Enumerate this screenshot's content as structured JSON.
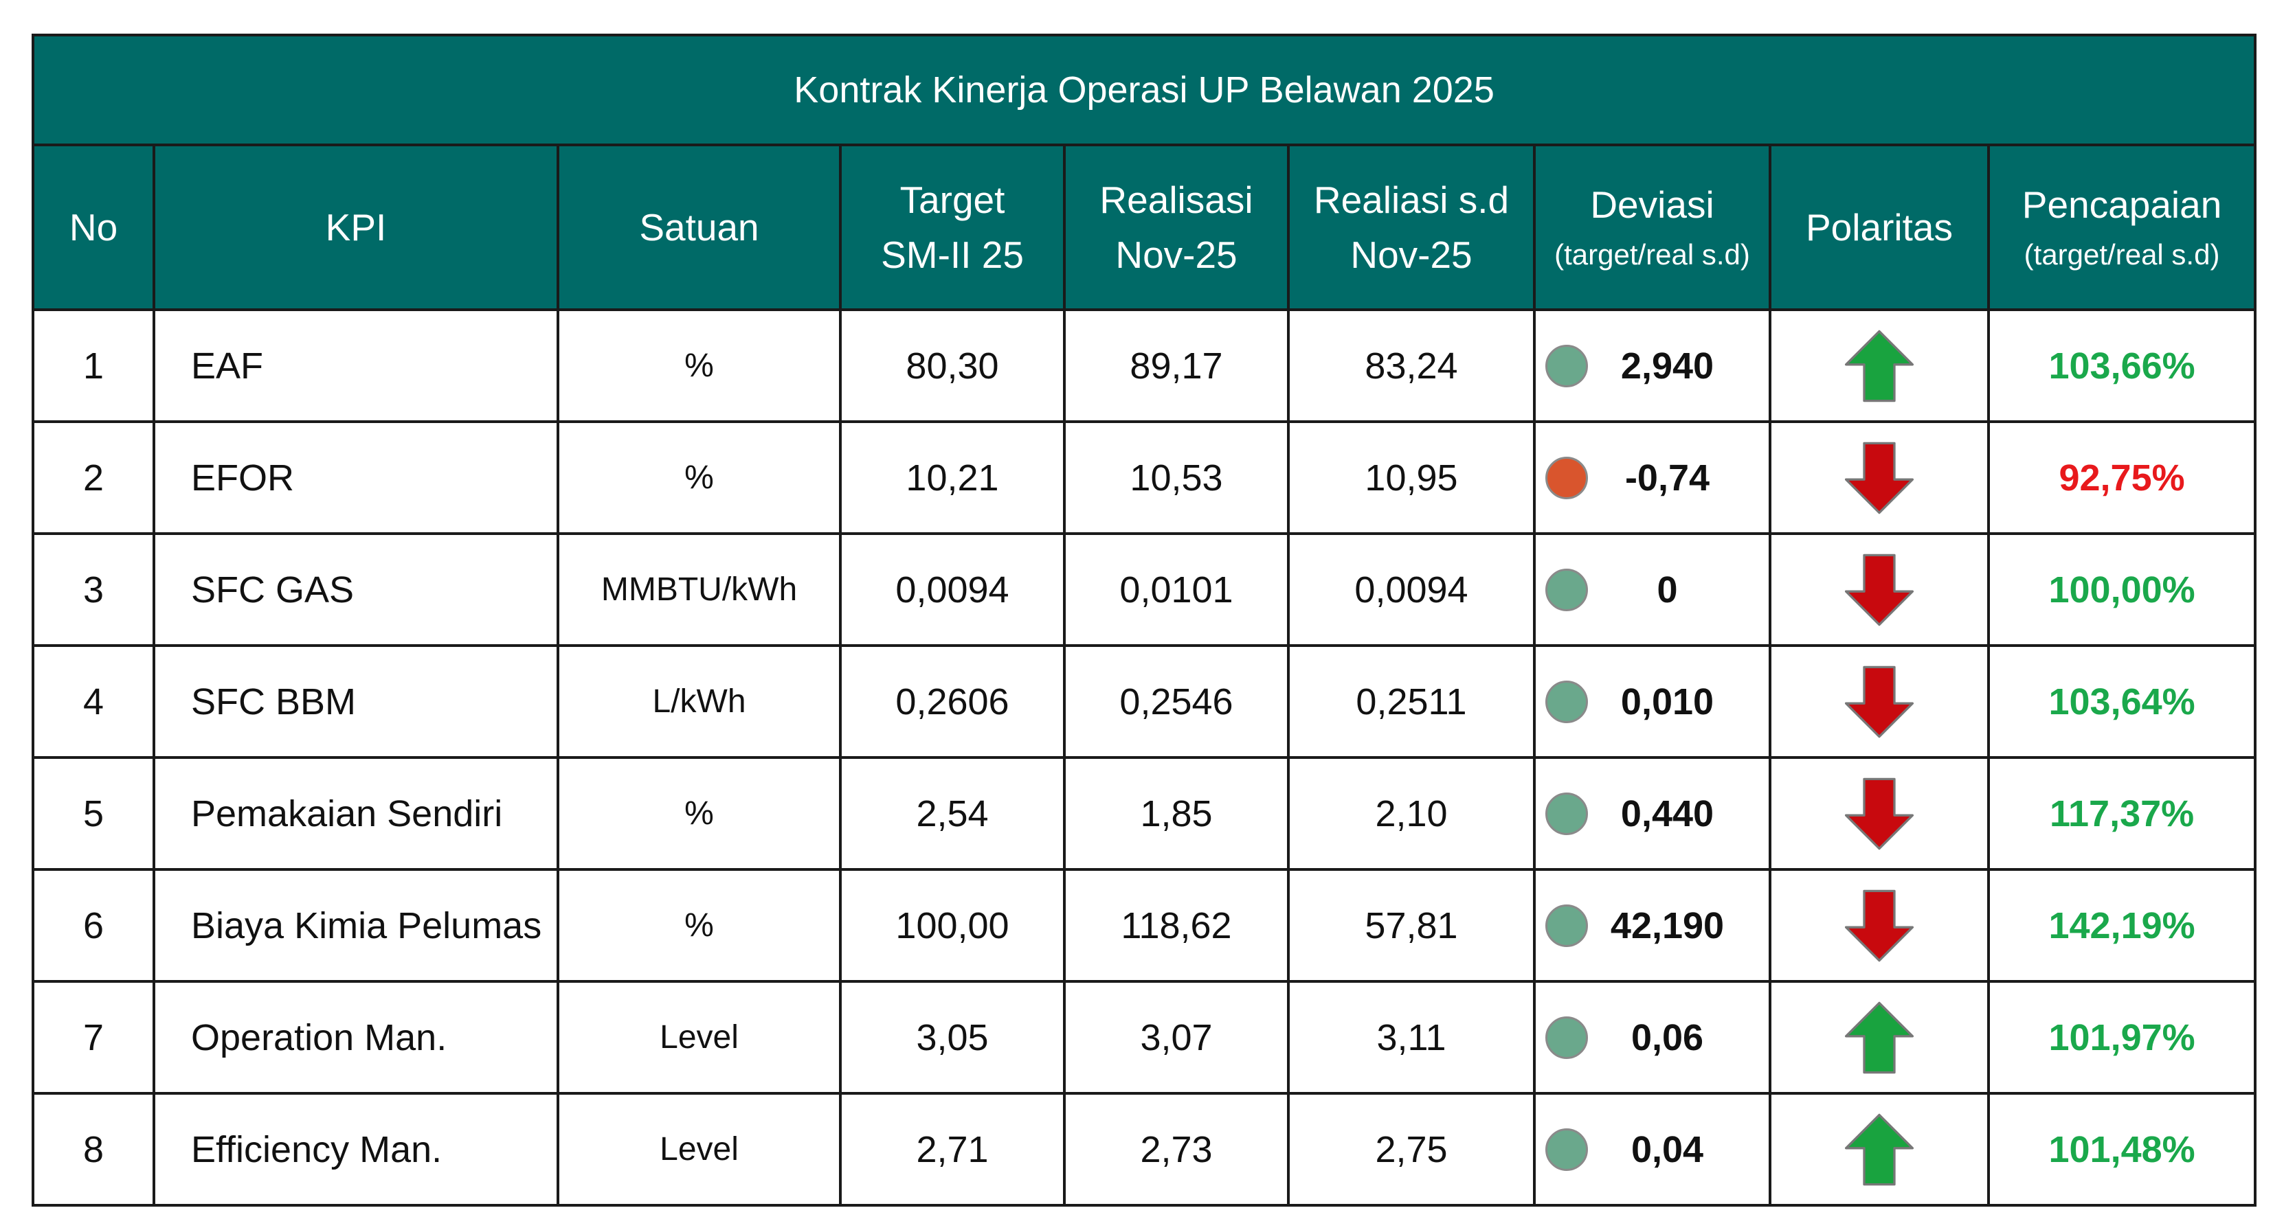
{
  "chart_data": {
    "type": "table",
    "title": "Kontrak Kinerja Operasi UP Belawan 2025",
    "columns": [
      {
        "main": "No",
        "sub": ""
      },
      {
        "main": "KPI",
        "sub": ""
      },
      {
        "main": "Satuan",
        "sub": ""
      },
      {
        "main": "Target",
        "main2": "SM-II 25",
        "sub": ""
      },
      {
        "main": "Realisasi",
        "main2": "Nov-25",
        "sub": ""
      },
      {
        "main": "Realiasi s.d",
        "main2": "Nov-25",
        "sub": ""
      },
      {
        "main": "Deviasi",
        "sub": "(target/real s.d)"
      },
      {
        "main": "Polaritas",
        "sub": ""
      },
      {
        "main": "Pencapaian",
        "sub": "(target/real s.d)"
      }
    ],
    "rows": [
      {
        "no": "1",
        "kpi": "EAF",
        "satuan": "%",
        "target": "80,30",
        "realisasi": "89,17",
        "realisasi_sd": "83,24",
        "deviasi": "2,940",
        "status": "good",
        "polaritas": "up",
        "pencapaian": "103,66%"
      },
      {
        "no": "2",
        "kpi": "EFOR",
        "satuan": "%",
        "target": "10,21",
        "realisasi": "10,53",
        "realisasi_sd": "10,95",
        "deviasi": "-0,74",
        "status": "bad",
        "polaritas": "down",
        "pencapaian": "92,75%"
      },
      {
        "no": "3",
        "kpi": "SFC GAS",
        "satuan": "MMBTU/kWh",
        "target": "0,0094",
        "realisasi": "0,0101",
        "realisasi_sd": "0,0094",
        "deviasi": "0",
        "status": "good",
        "polaritas": "down",
        "pencapaian": "100,00%"
      },
      {
        "no": "4",
        "kpi": "SFC BBM",
        "satuan": "L/kWh",
        "target": "0,2606",
        "realisasi": "0,2546",
        "realisasi_sd": "0,2511",
        "deviasi": "0,010",
        "status": "good",
        "polaritas": "down",
        "pencapaian": "103,64%"
      },
      {
        "no": "5",
        "kpi": "Pemakaian Sendiri",
        "satuan": "%",
        "target": "2,54",
        "realisasi": "1,85",
        "realisasi_sd": "2,10",
        "deviasi": "0,440",
        "status": "good",
        "polaritas": "down",
        "pencapaian": "117,37%"
      },
      {
        "no": "6",
        "kpi": "Biaya Kimia Pelumas",
        "satuan": "%",
        "target": "100,00",
        "realisasi": "118,62",
        "realisasi_sd": "57,81",
        "deviasi": "42,190",
        "status": "good",
        "polaritas": "down",
        "pencapaian": "142,19%"
      },
      {
        "no": "7",
        "kpi": "Operation Man.",
        "satuan": "Level",
        "target": "3,05",
        "realisasi": "3,07",
        "realisasi_sd": "3,11",
        "deviasi": "0,06",
        "status": "good",
        "polaritas": "up",
        "pencapaian": "101,97%"
      },
      {
        "no": "8",
        "kpi": "Efficiency Man.",
        "satuan": "Level",
        "target": "2,71",
        "realisasi": "2,73",
        "realisasi_sd": "2,75",
        "deviasi": "0,04",
        "status": "good",
        "polaritas": "up",
        "pencapaian": "101,48%"
      }
    ]
  },
  "colors": {
    "header_bg": "#006a67",
    "header_text": "#ffffff",
    "good_dot": "#6aa88c",
    "bad_dot": "#d9552d",
    "good_text": "#1aa84b",
    "bad_text": "#e8191c",
    "arrow_up": "#19a33f",
    "arrow_down": "#c8090e"
  }
}
